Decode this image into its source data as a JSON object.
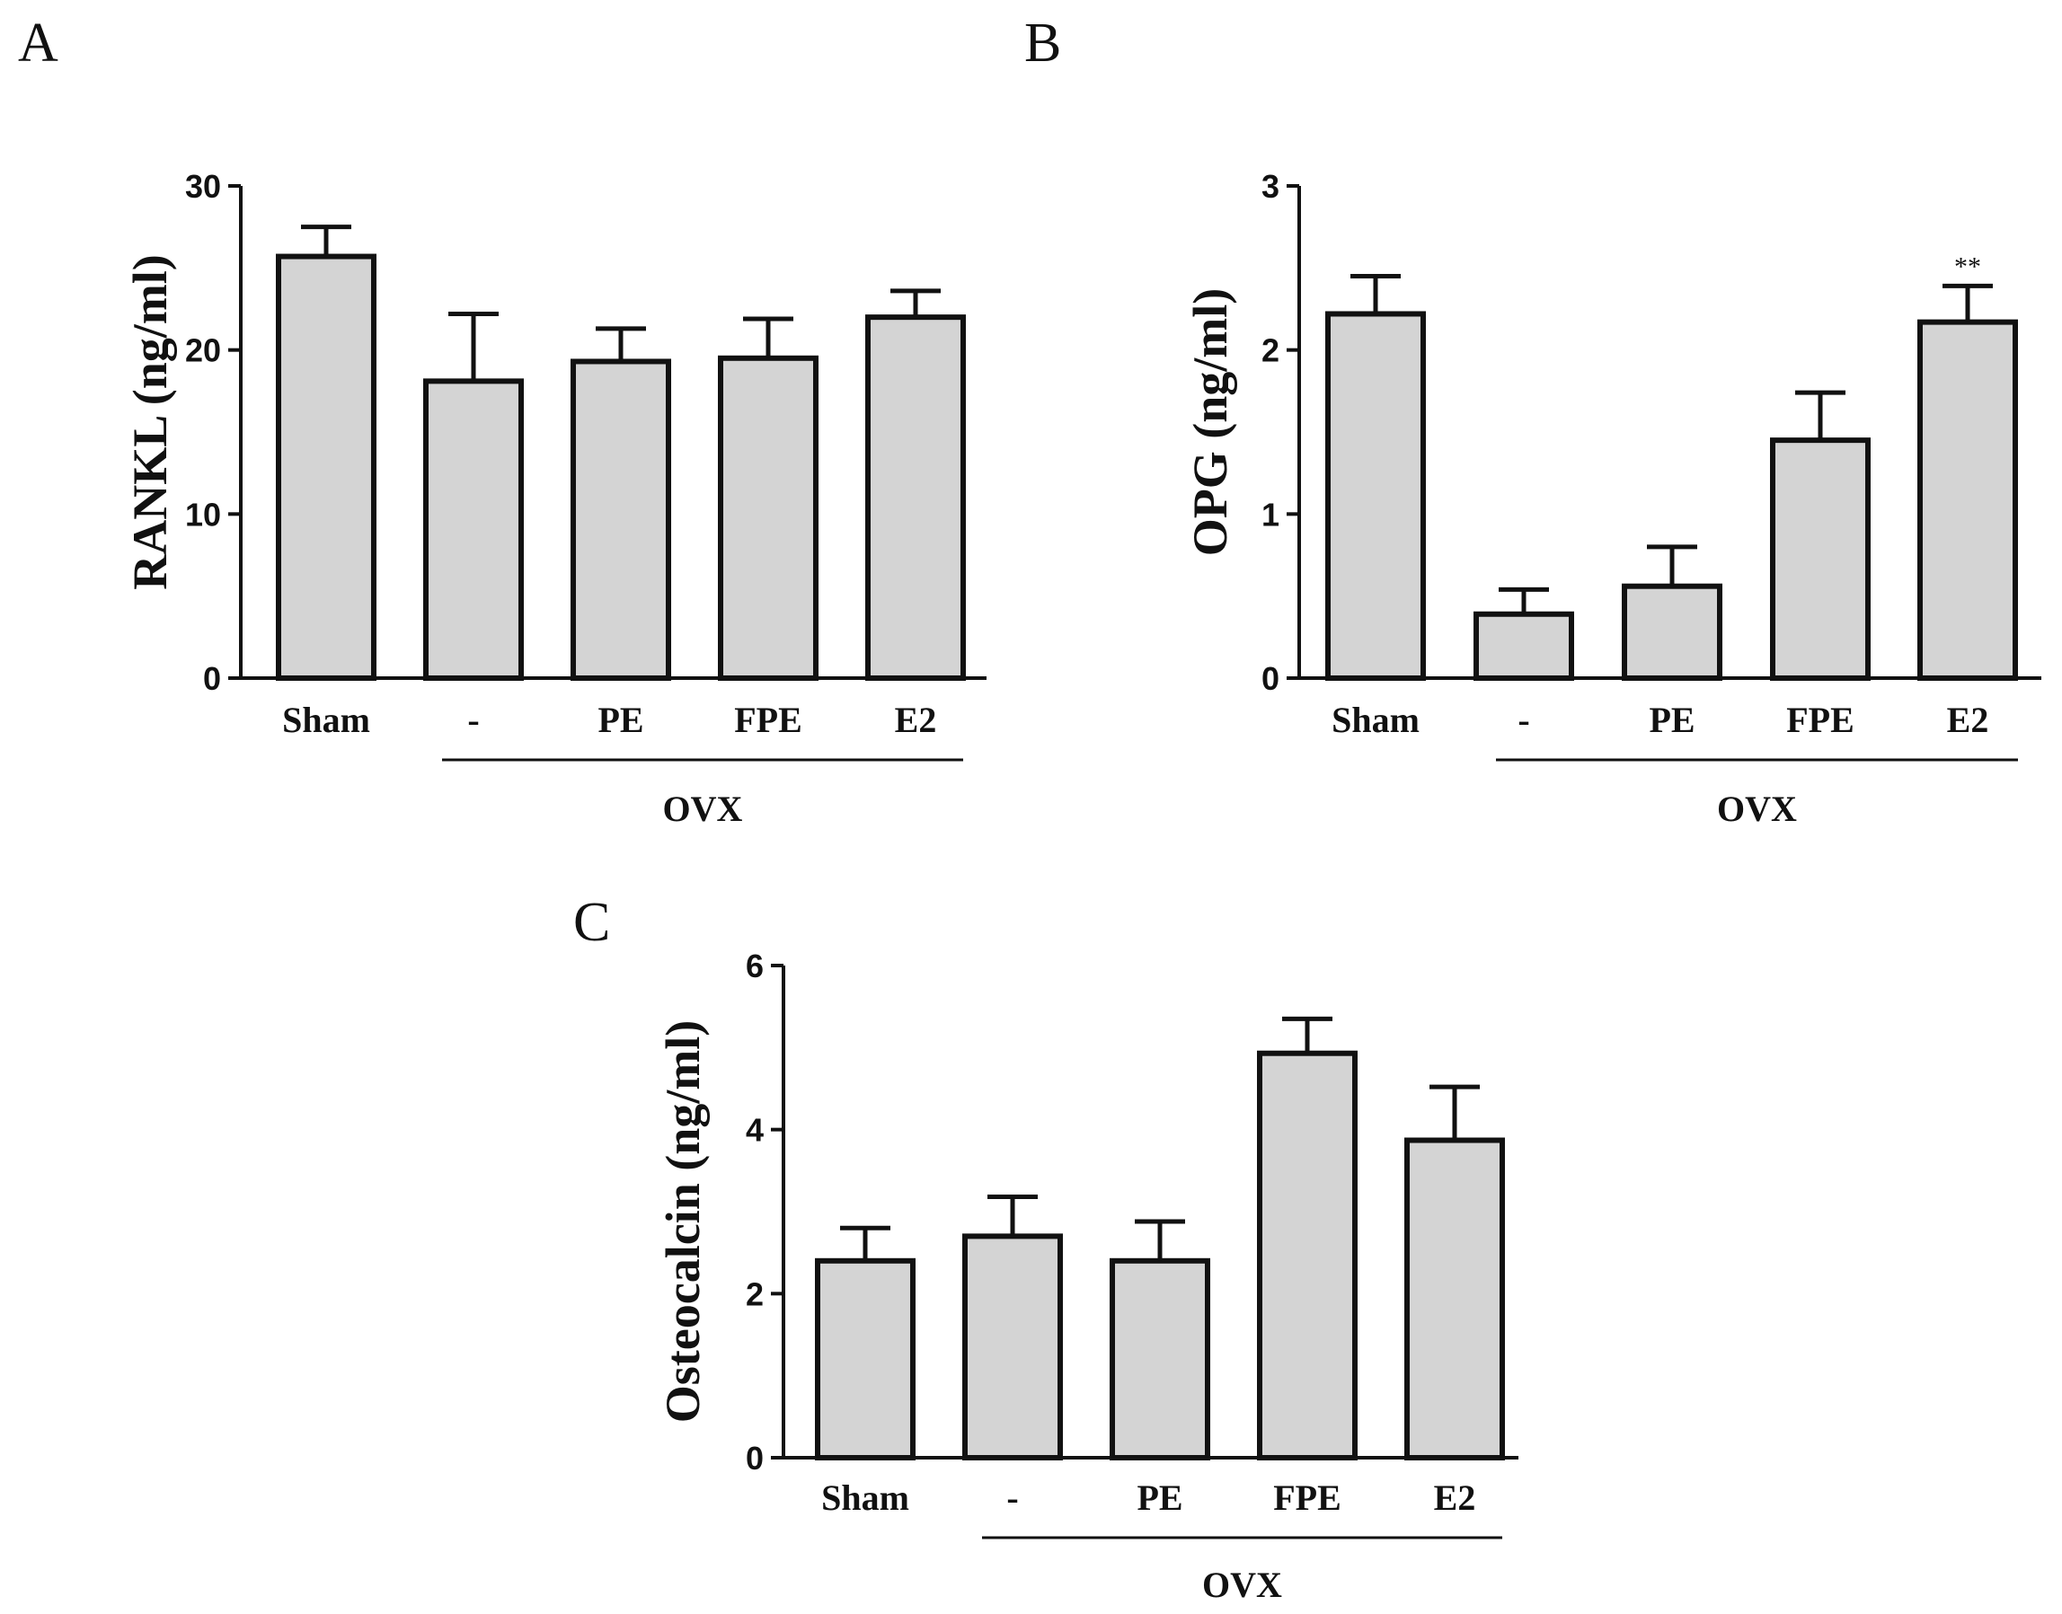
{
  "chart_data": [
    {
      "panel": "A",
      "type": "bar",
      "title": "",
      "xlabel": "",
      "ylabel": "RANKL (ng/ml)",
      "ylim": [
        0,
        30
      ],
      "yticks": [
        0,
        10,
        20,
        30
      ],
      "categories": [
        "Sham",
        "-",
        "PE",
        "FPE",
        "E2"
      ],
      "values": [
        25.7,
        18.1,
        19.3,
        19.5,
        22.0
      ],
      "errors": [
        1.8,
        4.1,
        2.0,
        2.4,
        1.6
      ],
      "group_label": "OVX",
      "annotations": [],
      "grid": false,
      "bar_color": "#d4d4d4"
    },
    {
      "panel": "B",
      "type": "bar",
      "title": "",
      "xlabel": "",
      "ylabel": "OPG (ng/ml)",
      "ylim": [
        0,
        3
      ],
      "yticks": [
        0,
        1,
        2,
        3
      ],
      "categories": [
        "Sham",
        "-",
        "PE",
        "FPE",
        "E2"
      ],
      "values": [
        2.22,
        0.39,
        0.56,
        1.45,
        2.17
      ],
      "errors": [
        0.23,
        0.15,
        0.24,
        0.29,
        0.22
      ],
      "group_label": "OVX",
      "annotations": [
        {
          "category": "E2",
          "text": "**"
        }
      ],
      "grid": false,
      "bar_color": "#d4d4d4"
    },
    {
      "panel": "C",
      "type": "bar",
      "title": "",
      "xlabel": "",
      "ylabel": "Osteocalcin (ng/ml)",
      "ylim": [
        0,
        6
      ],
      "yticks": [
        0,
        2,
        4,
        6
      ],
      "categories": [
        "Sham",
        "-",
        "PE",
        "FPE",
        "E2"
      ],
      "values": [
        2.4,
        2.7,
        2.4,
        4.93,
        3.87
      ],
      "errors": [
        0.4,
        0.48,
        0.48,
        0.42,
        0.65
      ],
      "group_label": "OVX",
      "annotations": [],
      "grid": false,
      "bar_color": "#d4d4d4"
    }
  ]
}
